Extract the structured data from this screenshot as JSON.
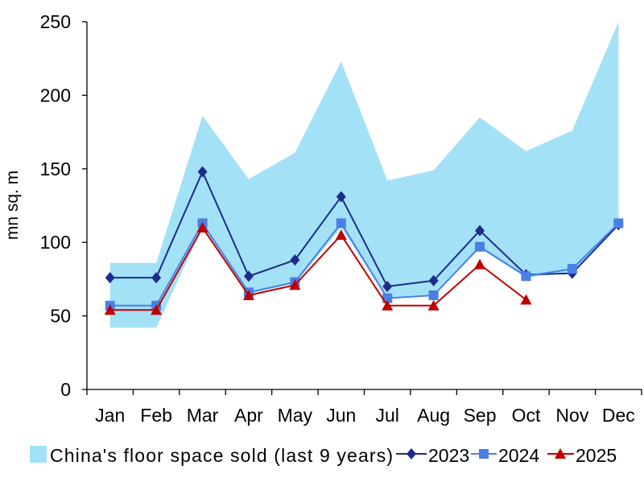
{
  "chart_data": {
    "type": "line",
    "categories": [
      "Jan",
      "Feb",
      "Mar",
      "Apr",
      "May",
      "Jun",
      "Jul",
      "Aug",
      "Sep",
      "Oct",
      "Nov",
      "Dec"
    ],
    "ylabel": "mn sq. m",
    "ylim": [
      0,
      250
    ],
    "yticks": [
      0,
      50,
      100,
      150,
      200,
      250
    ],
    "grid": false,
    "legend_position": "bottom",
    "band": {
      "name": "China's floor space sold (last 9 years)",
      "type": "area-range",
      "color": "#a3e1f7",
      "upper": [
        86,
        86,
        186,
        143,
        161,
        223,
        142,
        149,
        185,
        162,
        176,
        250
      ],
      "lower": [
        42,
        42,
        110,
        65,
        72,
        110,
        62,
        64,
        96,
        76,
        80,
        112
      ]
    },
    "series": [
      {
        "name": "2023",
        "marker": "diamond",
        "color": "#1c2c8c",
        "values": [
          76,
          76,
          148,
          77,
          88,
          131,
          70,
          74,
          108,
          78,
          79,
          112
        ]
      },
      {
        "name": "2024",
        "marker": "square",
        "color": "#4a7fe6",
        "values": [
          57,
          57,
          113,
          66,
          73,
          113,
          62,
          64,
          97,
          77,
          82,
          113
        ]
      },
      {
        "name": "2025",
        "marker": "triangle",
        "color": "#c00000",
        "values": [
          54,
          54,
          110,
          64,
          71,
          105,
          57,
          57,
          85,
          61,
          null,
          null
        ]
      }
    ]
  }
}
